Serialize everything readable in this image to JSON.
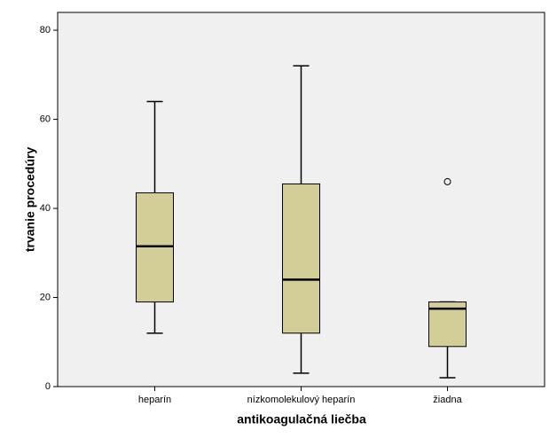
{
  "chart_data": {
    "type": "box",
    "x_label": "antikoagulačná liečba",
    "y_label": "trvanie procedúry",
    "categories": [
      "heparín",
      "nízkomolekulový heparín",
      "žiadna"
    ],
    "boxes": [
      {
        "min": 12,
        "q1": 19,
        "median": 31.5,
        "q3": 43.5,
        "max": 64,
        "outliers": []
      },
      {
        "min": 3,
        "q1": 12,
        "median": 24,
        "q3": 45.5,
        "max": 72,
        "outliers": []
      },
      {
        "min": 2,
        "q1": 9,
        "median": 17.5,
        "q3": 19,
        "max": 19,
        "outliers": [
          46
        ]
      }
    ],
    "color": "#d3cd98",
    "ylim": [
      0,
      84
    ],
    "yticks": [
      0,
      20,
      40,
      60,
      80
    ]
  }
}
